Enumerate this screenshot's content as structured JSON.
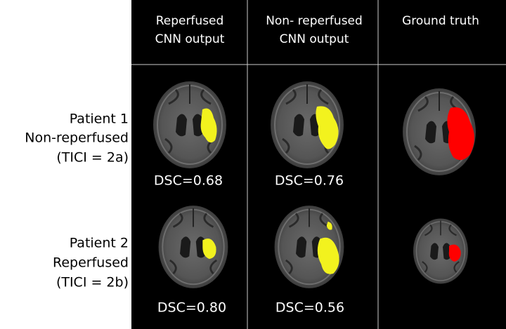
{
  "header": {
    "columns": [
      {
        "lines": [
          "Reperfused",
          "CNN output"
        ]
      },
      {
        "lines": [
          "Non- reperfused",
          "CNN output"
        ]
      },
      {
        "lines": [
          "Ground truth"
        ]
      }
    ]
  },
  "rows": [
    {
      "label": [
        "Patient 1",
        "Non-reperfused",
        "(TICI = 2a)"
      ],
      "scores": [
        "DSC=0.68",
        "DSC=0.76"
      ]
    },
    {
      "label": [
        "Patient 2",
        "Reperfused",
        "(TICI = 2b)"
      ],
      "scores": [
        "DSC=0.80",
        "DSC=0.56"
      ]
    }
  ]
}
